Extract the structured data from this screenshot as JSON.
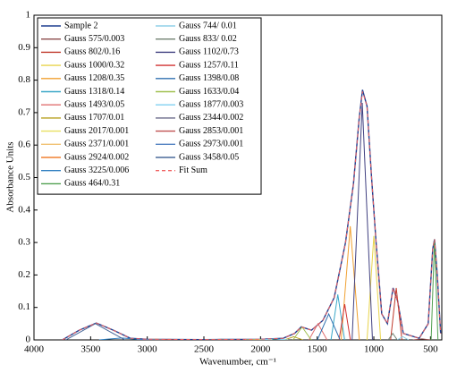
{
  "chart_data": {
    "type": "line",
    "xlabel": "Wavenumber, cm⁻¹",
    "ylabel": "Absorbance Units",
    "xlim": [
      4000,
      400
    ],
    "xticks": [
      4000,
      3500,
      3000,
      2500,
      2000,
      1500,
      1000,
      500
    ],
    "ylim": [
      0,
      1
    ],
    "yticks": [
      0,
      0.1,
      0.2,
      0.3,
      0.4,
      0.5,
      0.6,
      0.7,
      0.8,
      0.9,
      1
    ],
    "legend": "upper left",
    "series": [
      {
        "name": "Sample 2",
        "color": "#1f3f8f",
        "x": [
          3750,
          3600,
          3450,
          3300,
          3150,
          3000,
          2500,
          2000,
          1800,
          1700,
          1640,
          1550,
          1450,
          1350,
          1250,
          1180,
          1130,
          1100,
          1060,
          1020,
          980,
          930,
          880,
          830,
          790,
          740,
          600,
          520,
          480,
          464,
          440,
          410
        ],
        "values": [
          0,
          0.03,
          0.052,
          0.03,
          0.005,
          0.002,
          0.001,
          0.002,
          0.005,
          0.02,
          0.04,
          0.03,
          0.06,
          0.13,
          0.3,
          0.48,
          0.68,
          0.77,
          0.72,
          0.5,
          0.3,
          0.08,
          0.05,
          0.16,
          0.12,
          0.02,
          0.005,
          0.05,
          0.28,
          0.31,
          0.2,
          0.02
        ]
      },
      {
        "name": "Gauss 575/0.003",
        "color": "#8b4a4a",
        "x": [
          495,
          535,
          575,
          615,
          655
        ],
        "values": [
          0,
          0.0015,
          0.003,
          0.0015,
          0
        ]
      },
      {
        "name": "Gauss 802/0.16",
        "color": "#c0392b",
        "x": [
          752,
          777,
          802,
          827,
          852
        ],
        "values": [
          0,
          0.08,
          0.16,
          0.08,
          0
        ]
      },
      {
        "name": "Gauss 1000/0.32",
        "color": "#e8d44d",
        "x": [
          940,
          970,
          1000,
          1030,
          1060
        ],
        "values": [
          0,
          0.16,
          0.32,
          0.16,
          0
        ]
      },
      {
        "name": "Gauss 1208/0.35",
        "color": "#f0a030",
        "x": [
          1128,
          1168,
          1208,
          1248,
          1288
        ],
        "values": [
          0,
          0.175,
          0.35,
          0.175,
          0
        ]
      },
      {
        "name": "Gauss 1318/0.14",
        "color": "#3aa8c8",
        "x": [
          1258,
          1288,
          1318,
          1348,
          1378
        ],
        "values": [
          0,
          0.07,
          0.14,
          0.07,
          0
        ]
      },
      {
        "name": "Gauss 1493/0.05",
        "color": "#e07070",
        "x": [
          1413,
          1453,
          1493,
          1533,
          1573
        ],
        "values": [
          0,
          0.025,
          0.05,
          0.025,
          0
        ]
      },
      {
        "name": "Gauss 1707/0.01",
        "color": "#b8a020",
        "x": [
          1627,
          1667,
          1707,
          1747,
          1787
        ],
        "values": [
          0,
          0.005,
          0.01,
          0.005,
          0
        ]
      },
      {
        "name": "Gauss 2017/0.001",
        "color": "#e8e060",
        "x": [
          1897,
          1957,
          2017,
          2077,
          2137
        ],
        "values": [
          0,
          0.0005,
          0.001,
          0.0005,
          0
        ]
      },
      {
        "name": "Gauss 2371/0.001",
        "color": "#f0c070",
        "x": [
          2251,
          2311,
          2371,
          2431,
          2491
        ],
        "values": [
          0,
          0.0005,
          0.001,
          0.0005,
          0
        ]
      },
      {
        "name": "Gauss 2924/0.002",
        "color": "#f08030",
        "x": [
          2804,
          2864,
          2924,
          2984,
          3044
        ],
        "values": [
          0,
          0.001,
          0.002,
          0.001,
          0
        ]
      },
      {
        "name": "Gauss 3225/0.006",
        "color": "#2f7fc0",
        "x": [
          3025,
          3125,
          3225,
          3325,
          3425
        ],
        "values": [
          0,
          0.003,
          0.006,
          0.003,
          0
        ]
      },
      {
        "name": "Gauss 464/0.31",
        "color": "#50a050",
        "x": [
          434,
          449,
          464,
          479,
          494
        ],
        "values": [
          0,
          0.155,
          0.31,
          0.155,
          0
        ]
      },
      {
        "name": "Gauss 744/ 0.01",
        "color": "#90d0e8",
        "x": [
          694,
          719,
          744,
          769,
          794
        ],
        "values": [
          0,
          0.005,
          0.01,
          0.005,
          0
        ]
      },
      {
        "name": "Gauss 833/ 0.02",
        "color": "#708070",
        "x": [
          793,
          813,
          833,
          853,
          873
        ],
        "values": [
          0,
          0.01,
          0.02,
          0.01,
          0
        ]
      },
      {
        "name": "Gauss 1102/0.73",
        "color": "#404080",
        "x": [
          1012,
          1057,
          1102,
          1147,
          1192
        ],
        "values": [
          0,
          0.365,
          0.73,
          0.365,
          0
        ]
      },
      {
        "name": "Gauss 1257/0.11",
        "color": "#d03030",
        "x": [
          1207,
          1232,
          1257,
          1282,
          1307
        ],
        "values": [
          0,
          0.055,
          0.11,
          0.055,
          0
        ]
      },
      {
        "name": "Gauss 1398/0.08",
        "color": "#3070b0",
        "x": [
          1298,
          1348,
          1398,
          1448,
          1498
        ],
        "values": [
          0,
          0.04,
          0.08,
          0.04,
          0
        ]
      },
      {
        "name": "Gauss 1633/0.04",
        "color": "#a0c050",
        "x": [
          1553,
          1593,
          1633,
          1673,
          1713
        ],
        "values": [
          0,
          0.02,
          0.04,
          0.02,
          0
        ]
      },
      {
        "name": "Gauss 1877/0.003",
        "color": "#80d0f0",
        "x": [
          1757,
          1817,
          1877,
          1937,
          1997
        ],
        "values": [
          0,
          0.0015,
          0.003,
          0.0015,
          0
        ]
      },
      {
        "name": "Gauss 2344/0.002",
        "color": "#6a6a8a",
        "x": [
          2224,
          2284,
          2344,
          2404,
          2464
        ],
        "values": [
          0,
          0.001,
          0.002,
          0.001,
          0
        ]
      },
      {
        "name": "Gauss 2853/0.001",
        "color": "#c05050",
        "x": [
          2733,
          2793,
          2853,
          2913,
          2973
        ],
        "values": [
          0,
          0.0005,
          0.001,
          0.0005,
          0
        ]
      },
      {
        "name": "Gauss 2973/0.001",
        "color": "#5080c0",
        "x": [
          2853,
          2913,
          2973,
          3033,
          3093
        ],
        "values": [
          0,
          0.0005,
          0.001,
          0.0005,
          0
        ]
      },
      {
        "name": "Gauss 3458/0.05",
        "color": "#4a6a9a",
        "x": [
          3198,
          3328,
          3458,
          3588,
          3718
        ],
        "values": [
          0,
          0.025,
          0.05,
          0.025,
          0
        ]
      },
      {
        "name": "Fit Sum",
        "color": "#f06060",
        "dash": true,
        "x": [
          3750,
          3600,
          3450,
          3300,
          3150,
          3000,
          2500,
          2000,
          1800,
          1700,
          1640,
          1550,
          1450,
          1350,
          1250,
          1180,
          1130,
          1100,
          1060,
          1020,
          980,
          930,
          880,
          830,
          790,
          740,
          600,
          520,
          480,
          464,
          440,
          410
        ],
        "values": [
          0,
          0.03,
          0.052,
          0.03,
          0.005,
          0.002,
          0.001,
          0.002,
          0.005,
          0.02,
          0.04,
          0.03,
          0.06,
          0.13,
          0.3,
          0.48,
          0.68,
          0.765,
          0.72,
          0.5,
          0.3,
          0.08,
          0.05,
          0.16,
          0.12,
          0.02,
          0.005,
          0.05,
          0.28,
          0.31,
          0.2,
          0.02
        ]
      }
    ]
  }
}
